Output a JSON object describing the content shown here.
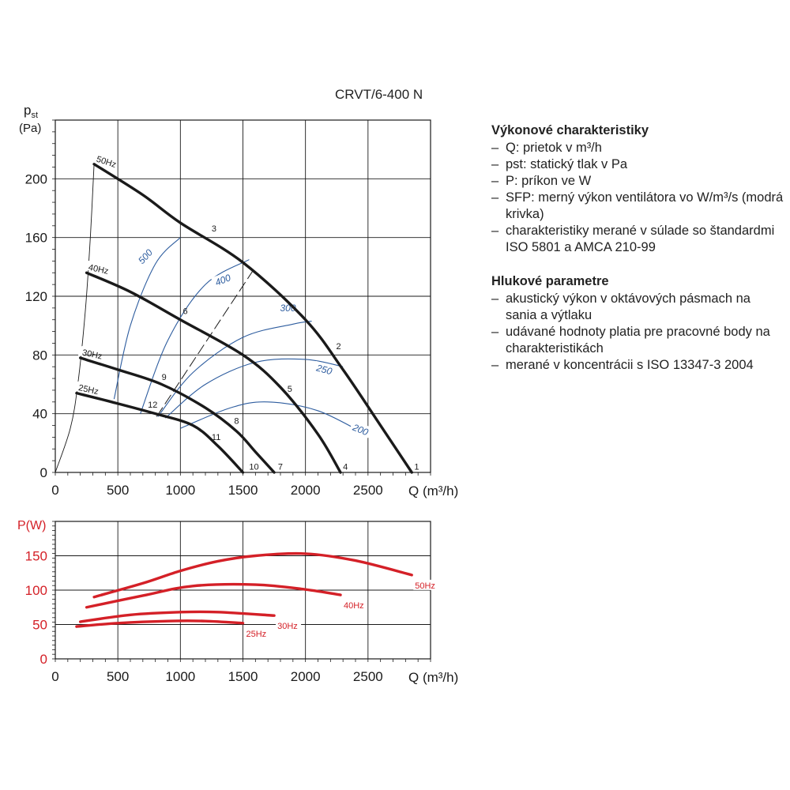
{
  "title": "CRVT/6-400 N",
  "legend": {
    "performance_heading": "Výkonové charakteristiky",
    "performance_items": [
      "Q: prietok v m³/h",
      "pst: statický tlak v Pa",
      "P: príkon ve W",
      "SFP: merný výkon ventilátora vo W/m³/s (modrá krivka)",
      "charakteristiky merané v súlade so štandardmi ISO 5801 a AMCA 210-99"
    ],
    "noise_heading": "Hlukové parametre",
    "noise_items": [
      "akustický výkon v oktávových pásmach na sania a výtlaku",
      "udávané hodnoty platia pre pracovné body na charakteristikách",
      "merané v koncentrácii s ISO 13347-3 2004"
    ]
  },
  "chart_data": [
    {
      "type": "line",
      "name": "pressure",
      "ylabel_main": "p",
      "ylabel_sub": "st",
      "ylabel_unit": "(Pa)",
      "xlabel": "Q (m³/h)",
      "xlim": [
        0,
        3000
      ],
      "ylim": [
        0,
        240
      ],
      "xticks": [
        0,
        500,
        1000,
        1500,
        2000,
        2500
      ],
      "yticks": [
        0,
        40,
        80,
        120,
        160,
        200
      ],
      "grid": true,
      "fan_curves": [
        {
          "label": "50Hz",
          "points": [
            [
              310,
              210
            ],
            [
              700,
              189
            ],
            [
              1000,
              170
            ],
            [
              1500,
              143
            ],
            [
              2000,
              104
            ],
            [
              2300,
              70
            ],
            [
              2600,
              32
            ],
            [
              2850,
              0
            ]
          ]
        },
        {
          "label": "40Hz",
          "points": [
            [
              250,
              136
            ],
            [
              600,
              123
            ],
            [
              1000,
              104
            ],
            [
              1500,
              80
            ],
            [
              1800,
              58
            ],
            [
              2100,
              26
            ],
            [
              2280,
              0
            ]
          ]
        },
        {
          "label": "30Hz",
          "points": [
            [
              200,
              78
            ],
            [
              500,
              70
            ],
            [
              850,
              60
            ],
            [
              1200,
              44
            ],
            [
              1450,
              28
            ],
            [
              1600,
              14
            ],
            [
              1750,
              0
            ]
          ]
        },
        {
          "label": "25Hz",
          "points": [
            [
              170,
              54
            ],
            [
              450,
              48
            ],
            [
              800,
              40
            ],
            [
              1100,
              32
            ],
            [
              1300,
              18
            ],
            [
              1500,
              0
            ]
          ]
        }
      ],
      "sfp_curves": [
        {
          "label": "500",
          "points": [
            [
              470,
              50
            ],
            [
              600,
              100
            ],
            [
              800,
              142
            ],
            [
              1000,
              160
            ]
          ]
        },
        {
          "label": "400",
          "points": [
            [
              680,
              40
            ],
            [
              900,
              90
            ],
            [
              1200,
              128
            ],
            [
              1550,
              145
            ]
          ]
        },
        {
          "label": "300",
          "points": [
            [
              820,
              38
            ],
            [
              1100,
              68
            ],
            [
              1500,
              92
            ],
            [
              1900,
              101
            ],
            [
              2050,
              103
            ]
          ]
        },
        {
          "label": "250",
          "points": [
            [
              880,
              37
            ],
            [
              1200,
              60
            ],
            [
              1600,
              75
            ],
            [
              2000,
              77
            ],
            [
              2300,
              72
            ]
          ]
        },
        {
          "label": "200",
          "points": [
            [
              1000,
              30
            ],
            [
              1400,
              44
            ],
            [
              1700,
              48
            ],
            [
              2100,
              42
            ],
            [
              2500,
              25
            ]
          ]
        }
      ],
      "system_curve_thin": [
        [
          0,
          0
        ],
        [
          120,
          30
        ],
        [
          180,
          60
        ],
        [
          240,
          110
        ],
        [
          280,
          160
        ],
        [
          310,
          210
        ]
      ],
      "system_curve_dashed": [
        [
          810,
          38
        ],
        [
          1600,
          140
        ]
      ],
      "point_labels": [
        {
          "label": "1",
          "x": 2870,
          "y": 2
        },
        {
          "label": "2",
          "x": 2245,
          "y": 84
        },
        {
          "label": "3",
          "x": 1250,
          "y": 164
        },
        {
          "label": "4",
          "x": 2300,
          "y": 2
        },
        {
          "label": "5",
          "x": 1855,
          "y": 55
        },
        {
          "label": "6",
          "x": 1020,
          "y": 108
        },
        {
          "label": "7",
          "x": 1780,
          "y": 2
        },
        {
          "label": "8",
          "x": 1430,
          "y": 33
        },
        {
          "label": "9",
          "x": 850,
          "y": 63
        },
        {
          "label": "10",
          "x": 1550,
          "y": 2
        },
        {
          "label": "11",
          "x": 1250,
          "y": 22
        },
        {
          "label": "12",
          "x": 740,
          "y": 44
        }
      ]
    },
    {
      "type": "line",
      "name": "power",
      "ylabel": "P(W)",
      "xlabel": "Q (m³/h)",
      "xlim": [
        0,
        3000
      ],
      "ylim": [
        0,
        200
      ],
      "xticks": [
        0,
        500,
        1000,
        1500,
        2000,
        2500
      ],
      "yticks": [
        0,
        50,
        100,
        150
      ],
      "grid": true,
      "series": [
        {
          "name": "50Hz",
          "points": [
            [
              310,
              90
            ],
            [
              700,
              110
            ],
            [
              1000,
              128
            ],
            [
              1300,
              142
            ],
            [
              1600,
              150
            ],
            [
              2000,
              153
            ],
            [
              2400,
              143
            ],
            [
              2850,
              122
            ]
          ]
        },
        {
          "name": "40Hz",
          "points": [
            [
              250,
              75
            ],
            [
              700,
              92
            ],
            [
              1100,
              106
            ],
            [
              1600,
              108
            ],
            [
              2000,
              101
            ],
            [
              2280,
              93
            ]
          ]
        },
        {
          "name": "30Hz",
          "points": [
            [
              200,
              54
            ],
            [
              600,
              64
            ],
            [
              1000,
              68
            ],
            [
              1300,
              68
            ],
            [
              1750,
              63
            ]
          ]
        },
        {
          "name": "25Hz",
          "points": [
            [
              170,
              47
            ],
            [
              500,
              52
            ],
            [
              900,
              55
            ],
            [
              1200,
              55
            ],
            [
              1500,
              52
            ]
          ]
        }
      ]
    }
  ],
  "colors": {
    "axis": "#1a1a1a",
    "grid": "#1a1a1a",
    "fan_curve": "#1a1a1a",
    "sfp_curve": "#2e5d9f",
    "power_curve": "#d42027",
    "power_axis_label": "#d42027"
  }
}
